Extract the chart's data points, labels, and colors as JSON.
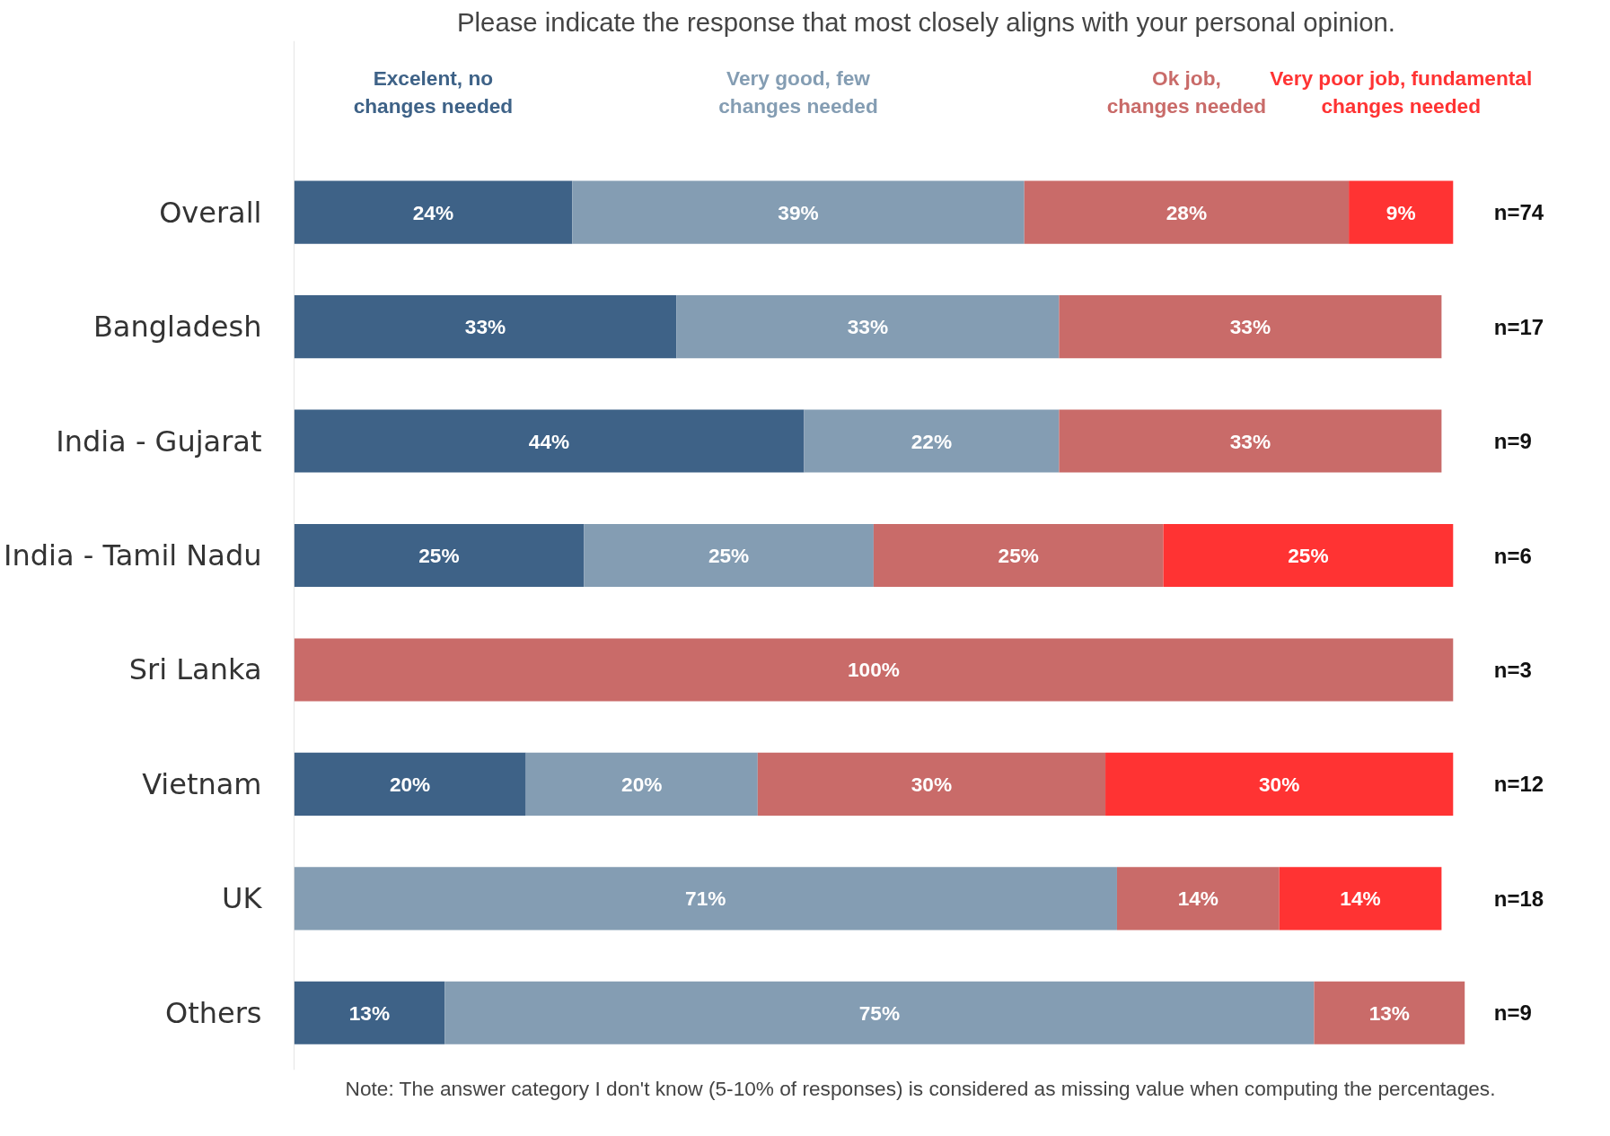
{
  "chart_data": {
    "type": "bar",
    "orientation": "horizontal",
    "stacked": true,
    "title": "Please indicate the response that most closely aligns with your personal opinion.",
    "categories": [
      "Overall",
      "Bangladesh",
      "India - Gujarat",
      "India - Tamil Nadu",
      "Sri Lanka",
      "Vietnam",
      "UK",
      "Others"
    ],
    "series": [
      {
        "name": "Excelent, no\nchanges needed",
        "color": "#3e6287",
        "values": [
          24,
          33,
          44,
          25,
          null,
          20,
          null,
          13
        ],
        "value_labels": [
          "24%",
          "33%",
          "44%",
          "25%",
          null,
          "20%",
          null,
          "13%"
        ]
      },
      {
        "name": "Very good, few\nchanges needed",
        "color": "#849db3",
        "values": [
          39,
          33,
          22,
          25,
          null,
          20,
          71,
          75
        ],
        "value_labels": [
          "39%",
          "33%",
          "22%",
          "25%",
          null,
          "20%",
          "71%",
          "75%"
        ]
      },
      {
        "name": "Ok job,\nchanges needed",
        "color": "#c96b69",
        "values": [
          28,
          33,
          33,
          25,
          100,
          30,
          14,
          13
        ],
        "value_labels": [
          "28%",
          "33%",
          "33%",
          "25%",
          "100%",
          "30%",
          "14%",
          "13%"
        ]
      },
      {
        "name": "Very poor job, fundamental\nchanges needed",
        "color": "#ff3333",
        "values": [
          9,
          null,
          null,
          25,
          null,
          30,
          14,
          null
        ],
        "value_labels": [
          "9%",
          null,
          null,
          "25%",
          null,
          "30%",
          "14%",
          null
        ]
      }
    ],
    "tick_labels": "y",
    "legend": "top",
    "annotations": [
      "n=74",
      "n=17",
      "n=9",
      "n=6",
      "n=3",
      "n=12",
      "n=18",
      "n=9",
      "Note:  The answer category I don't know  (5-10% of responses) is considered as missing value when computing the percentages."
    ]
  }
}
